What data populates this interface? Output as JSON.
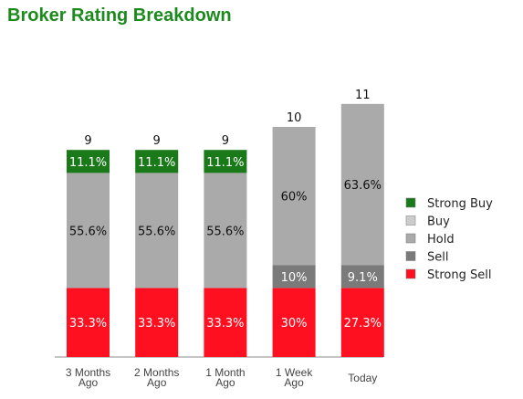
{
  "chart_data": {
    "type": "bar",
    "stacked": true,
    "title": "Broker Rating Breakdown",
    "categories": [
      "3 Months Ago",
      "2 Months Ago",
      "1 Month Ago",
      "1 Week Ago",
      "Today"
    ],
    "category_labels": [
      [
        "3 Months",
        "Ago"
      ],
      [
        "2 Months",
        "Ago"
      ],
      [
        "1 Month",
        "Ago"
      ],
      [
        "1 Week",
        "Ago"
      ],
      [
        "Today"
      ]
    ],
    "totals": [
      9,
      9,
      9,
      10,
      11
    ],
    "series": [
      {
        "name": "Strong Sell",
        "color": "#ff1020",
        "values": [
          3,
          3,
          3,
          3,
          3
        ],
        "labels": [
          "33.3%",
          "33.3%",
          "33.3%",
          "30%",
          "27.3%"
        ],
        "label_color": "#ffffff"
      },
      {
        "name": "Sell",
        "color": "#7a7a7a",
        "values": [
          0,
          0,
          0,
          1,
          1
        ],
        "labels": [
          "",
          "",
          "",
          "10%",
          "9.1%"
        ],
        "label_color": "#ffffff"
      },
      {
        "name": "Hold",
        "color": "#aaaaaa",
        "values": [
          5,
          5,
          5,
          6,
          7
        ],
        "labels": [
          "55.6%",
          "55.6%",
          "55.6%",
          "60%",
          "63.6%"
        ],
        "label_color": "#111111"
      },
      {
        "name": "Buy",
        "color": "#cccccc",
        "values": [
          0,
          0,
          0,
          0,
          0
        ],
        "labels": [
          "",
          "",
          "",
          "",
          ""
        ],
        "label_color": "#111111"
      },
      {
        "name": "Strong Buy",
        "color": "#1a7a1a",
        "values": [
          1,
          1,
          1,
          0,
          0
        ],
        "labels": [
          "11.1%",
          "11.1%",
          "11.1%",
          "",
          ""
        ],
        "label_color": "#ffffff"
      }
    ],
    "legend": {
      "position": "right",
      "order": [
        "Strong Buy",
        "Buy",
        "Hold",
        "Sell",
        "Strong Sell"
      ]
    },
    "grid": false
  }
}
